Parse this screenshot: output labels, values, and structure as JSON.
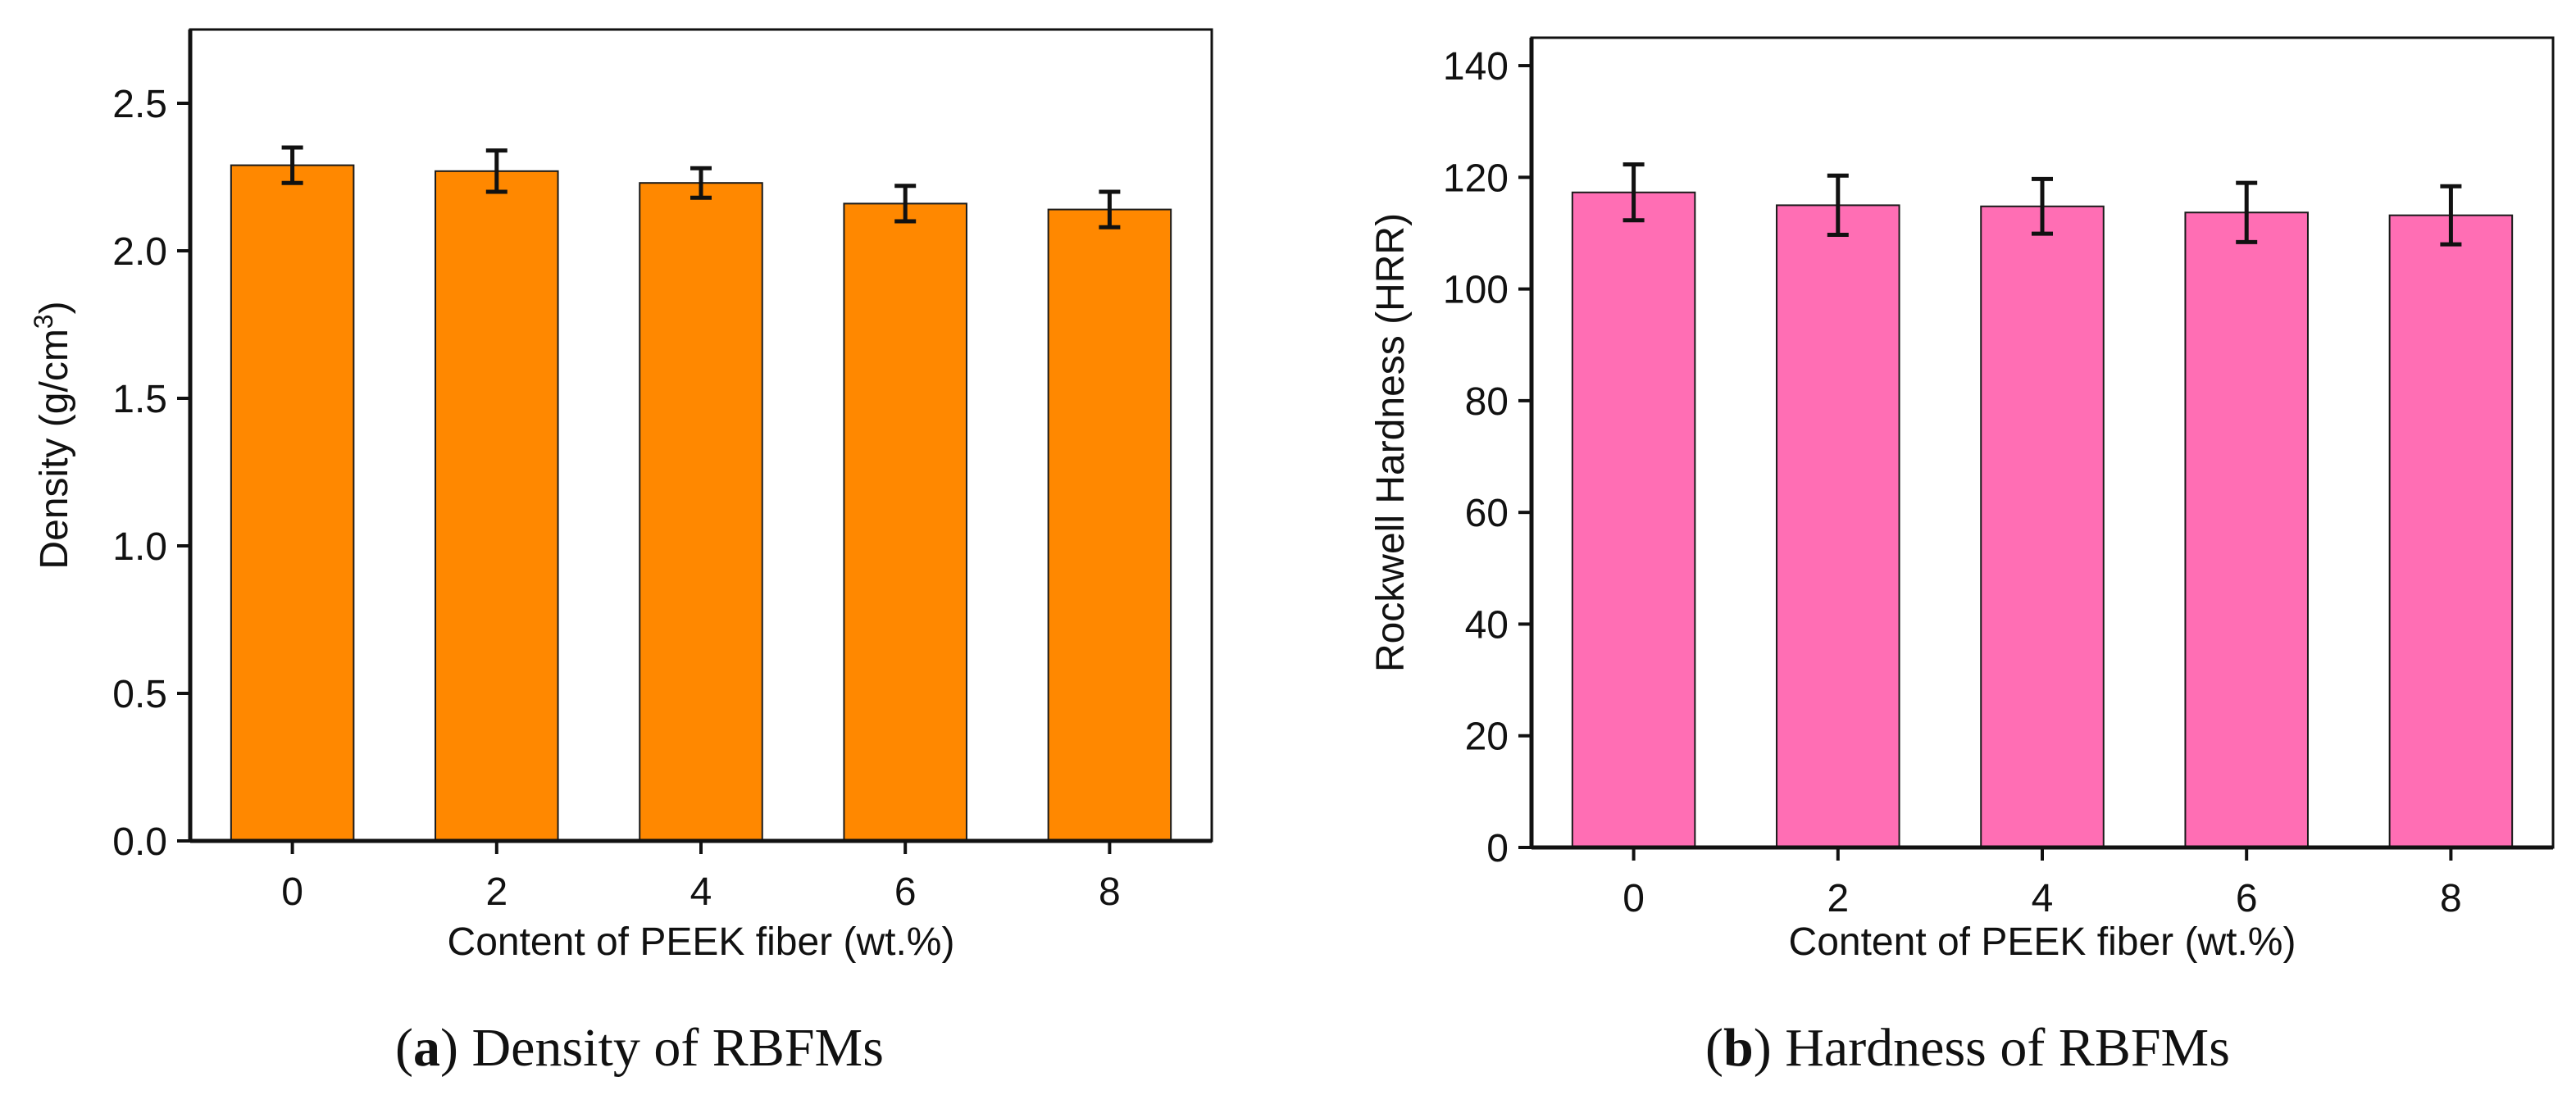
{
  "chart_data": [
    {
      "type": "bar",
      "title": "",
      "caption_letter": "a",
      "caption_text": "Density of RBFMs",
      "xlabel": "Content of PEEK fiber (wt.%)",
      "ylabel_main": "Density (g/cm",
      "ylabel_sup": "3",
      "ylabel_close": ")",
      "categories": [
        "0",
        "2",
        "4",
        "6",
        "8"
      ],
      "values": [
        2.29,
        2.27,
        2.23,
        2.16,
        2.14
      ],
      "errors": [
        0.06,
        0.07,
        0.05,
        0.06,
        0.06
      ],
      "ylim": [
        0,
        2.75
      ],
      "yticks": [
        0.0,
        0.5,
        1.0,
        1.5,
        2.0,
        2.5
      ],
      "ytick_labels": [
        "0.0",
        "0.5",
        "1.0",
        "1.5",
        "2.0",
        "2.5"
      ],
      "bar_color": "#FF8800",
      "grid": false
    },
    {
      "type": "bar",
      "title": "",
      "caption_letter": "b",
      "caption_text": "Hardness of RBFMs",
      "xlabel": "Content of PEEK fiber (wt.%)",
      "ylabel_main": "Rockwell Hardness (HRR)",
      "ylabel_sup": "",
      "ylabel_close": "",
      "categories": [
        "0",
        "2",
        "4",
        "6",
        "8"
      ],
      "values": [
        117.3,
        115.0,
        114.8,
        113.7,
        113.2
      ],
      "errors": [
        5.0,
        5.3,
        4.9,
        5.3,
        5.2
      ],
      "ylim": [
        0,
        145
      ],
      "yticks": [
        0,
        20,
        40,
        60,
        80,
        100,
        120,
        140
      ],
      "ytick_labels": [
        "0",
        "20",
        "40",
        "60",
        "80",
        "100",
        "120",
        "140"
      ],
      "bar_color": "#FF6EB4",
      "grid": false
    }
  ]
}
